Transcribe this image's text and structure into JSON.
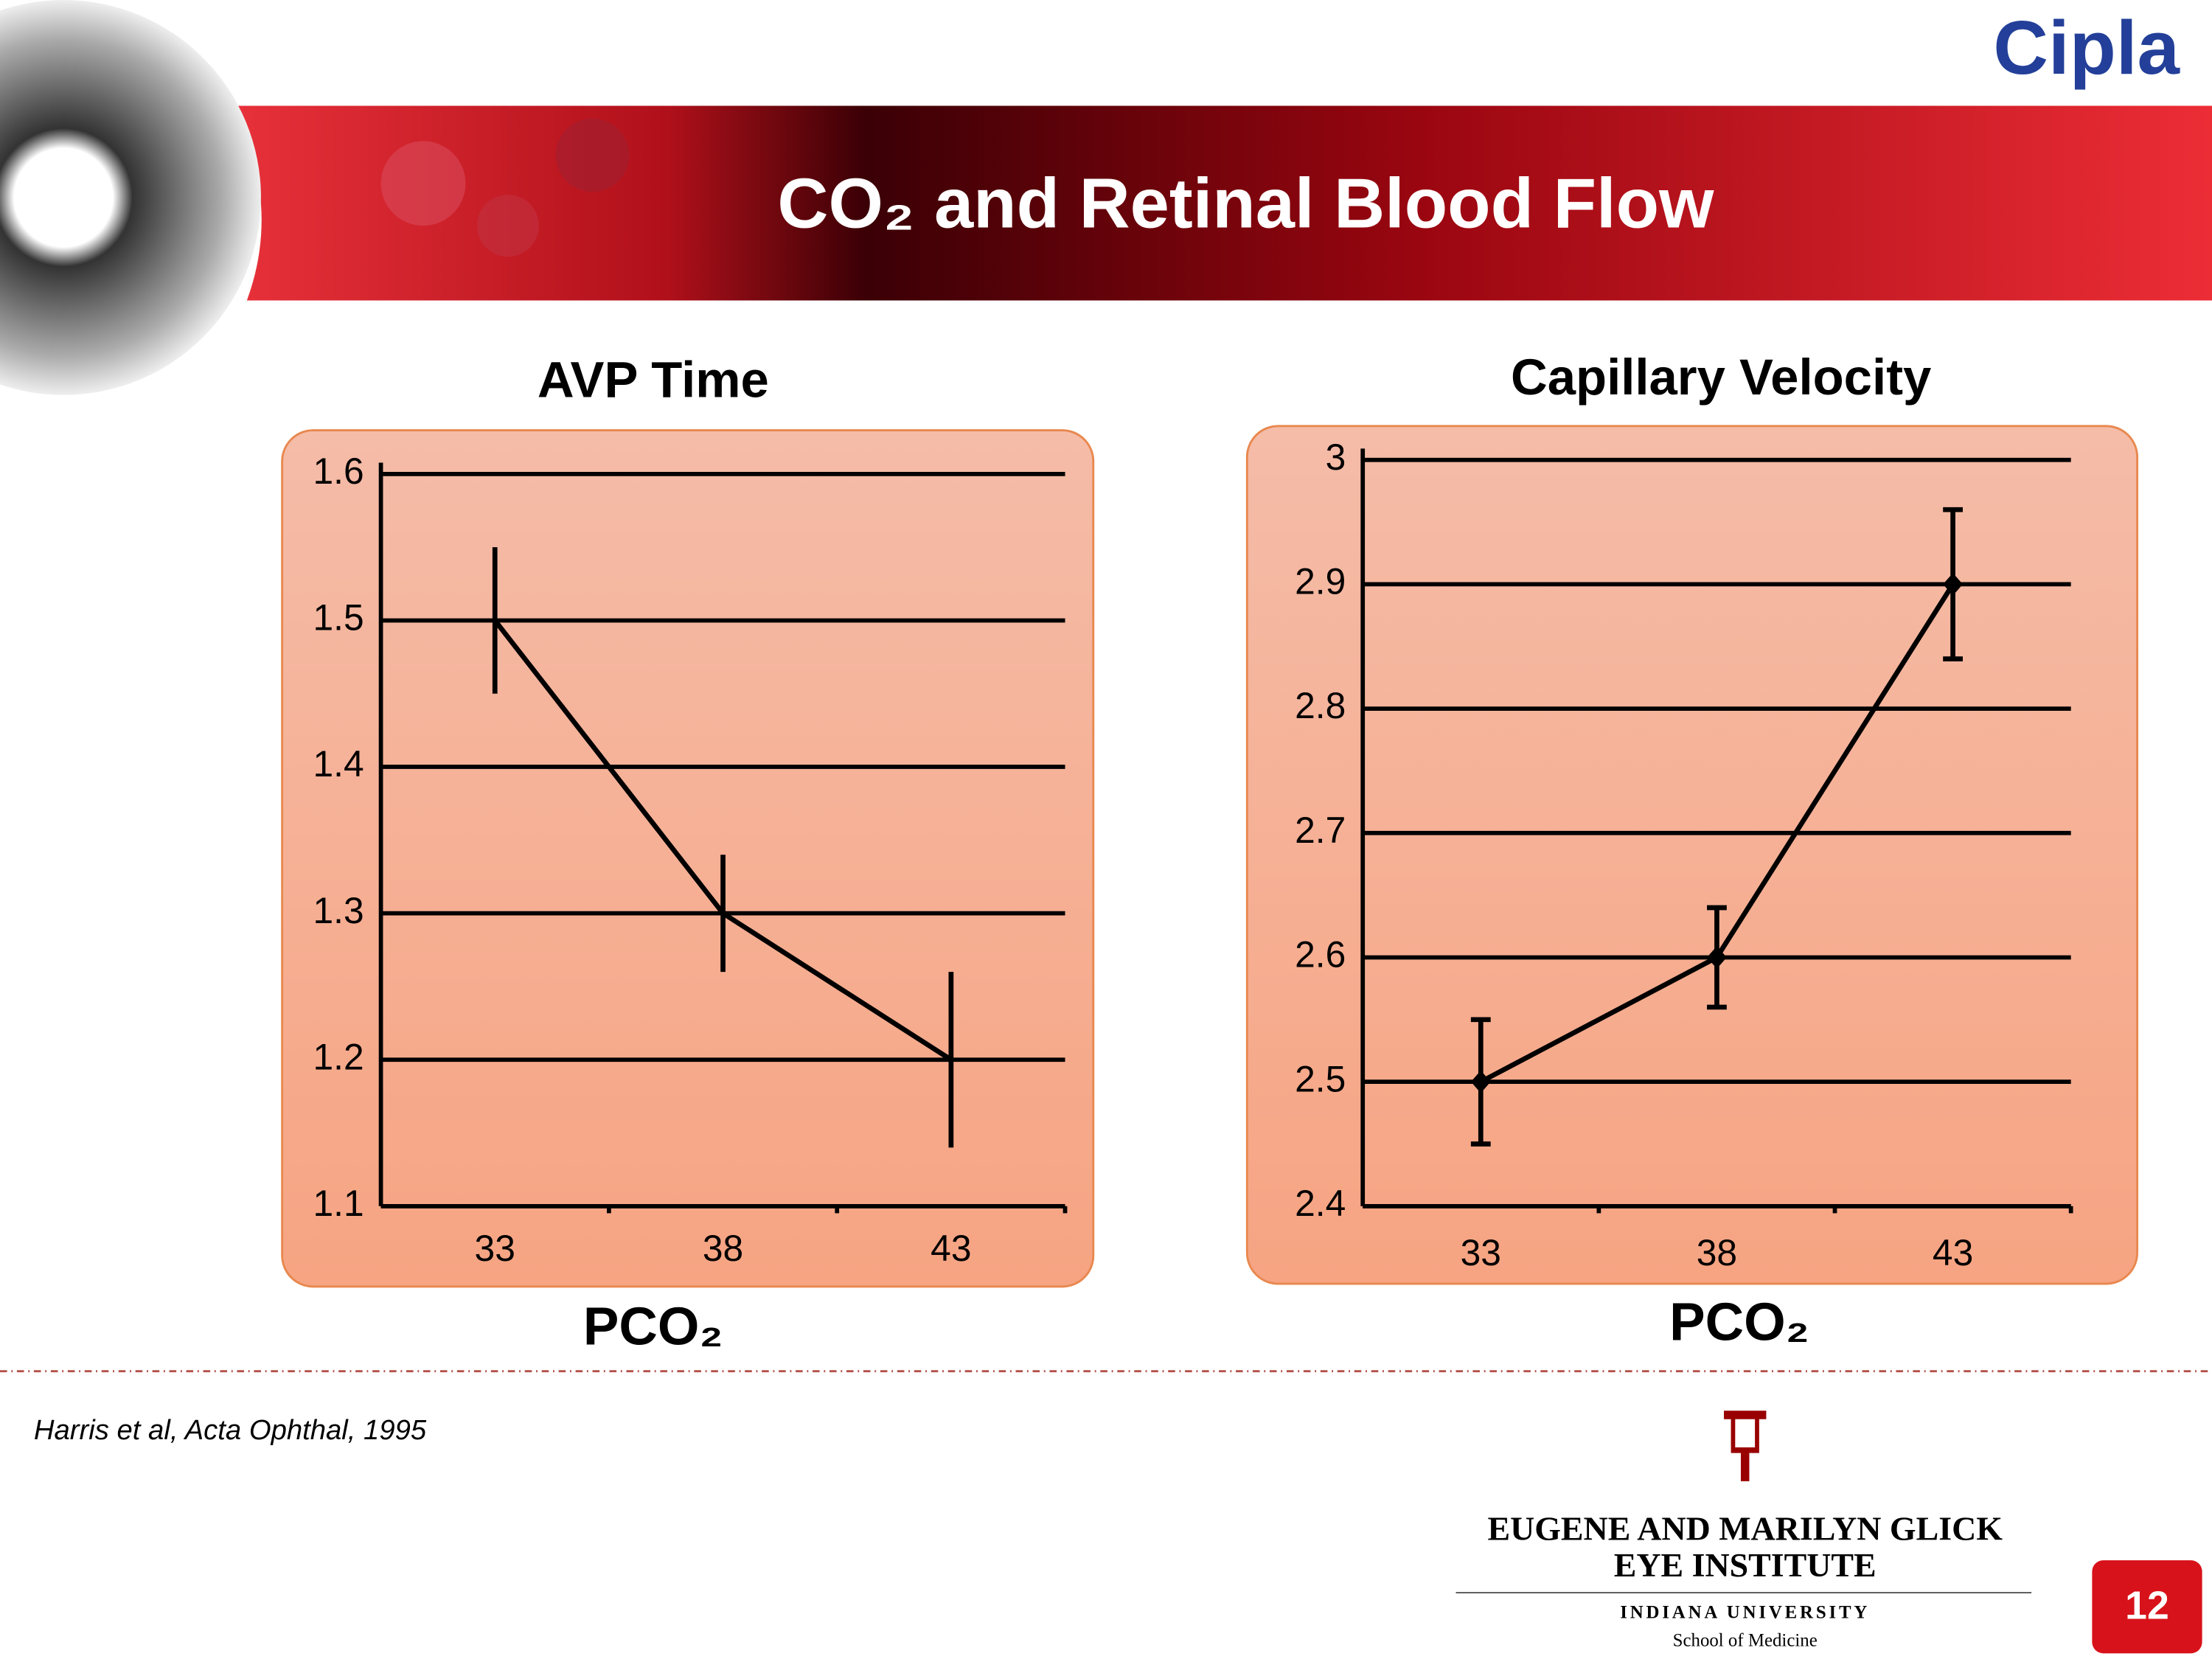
{
  "header": {
    "title": "CO₂ and Retinal Blood Flow",
    "logo": "Cipla"
  },
  "chart_data": [
    {
      "type": "line",
      "title": "AVP Time",
      "x_label": "PCO₂",
      "categories": [
        "33",
        "38",
        "43"
      ],
      "values": [
        1.5,
        1.3,
        1.2
      ],
      "errors": [
        0.05,
        0.04,
        0.06
      ],
      "color": "#000000",
      "ylim": [
        1.1,
        1.6
      ],
      "yticks": [
        1.1,
        1.2,
        1.3,
        1.4,
        1.5,
        1.6
      ],
      "grid": true
    },
    {
      "type": "line",
      "title": "Capillary Velocity",
      "x_label": "PCO₂",
      "categories": [
        "33",
        "38",
        "43"
      ],
      "values": [
        2.5,
        2.6,
        2.9
      ],
      "errors": [
        0.05,
        0.04,
        0.06
      ],
      "color": "#000000",
      "marker": "diamond",
      "error_caps": true,
      "ylim": [
        2.4,
        3
      ],
      "yticks": [
        2.4,
        2.5,
        2.6,
        2.7,
        2.8,
        2.9,
        3
      ],
      "grid": true
    }
  ],
  "citation": "Harris et al, Acta Ophthal, 1995",
  "institute": {
    "line1": "EUGENE AND MARILYN GLICK",
    "line2": "EYE INSTITUTE",
    "university": "INDIANA UNIVERSITY",
    "school": "School of Medicine"
  },
  "page_number": "12"
}
